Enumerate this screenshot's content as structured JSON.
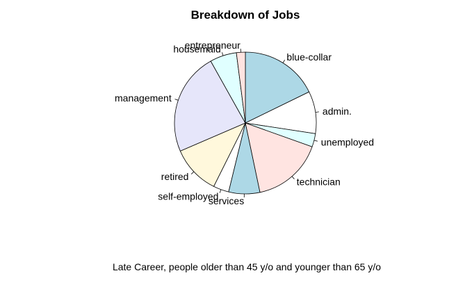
{
  "chart_data": {
    "type": "pie",
    "title": "Breakdown of Jobs",
    "caption": "Late Career, people older than 45 y/o and younger than 65 y/o",
    "slices": [
      {
        "label": "blue-collar",
        "value": 17.5,
        "color": "#add8e6"
      },
      {
        "label": "admin.",
        "value": 9.5,
        "color": "#ffffff"
      },
      {
        "label": "unemployed",
        "value": 3.0,
        "color": "#e0ffff"
      },
      {
        "label": "technician",
        "value": 16.0,
        "color": "#ffe4e1"
      },
      {
        "label": "services",
        "value": 7.0,
        "color": "#add8e6"
      },
      {
        "label": "self-employed",
        "value": 3.5,
        "color": "#ffffff"
      },
      {
        "label": "retired",
        "value": 11.0,
        "color": "#fff8dc"
      },
      {
        "label": "management",
        "value": 23.0,
        "color": "#e6e6fa"
      },
      {
        "label": "housemaid",
        "value": 6.0,
        "color": "#e0ffff"
      },
      {
        "label": "entrepreneur",
        "value": 2.0,
        "color": "#ffe4e1"
      }
    ]
  }
}
